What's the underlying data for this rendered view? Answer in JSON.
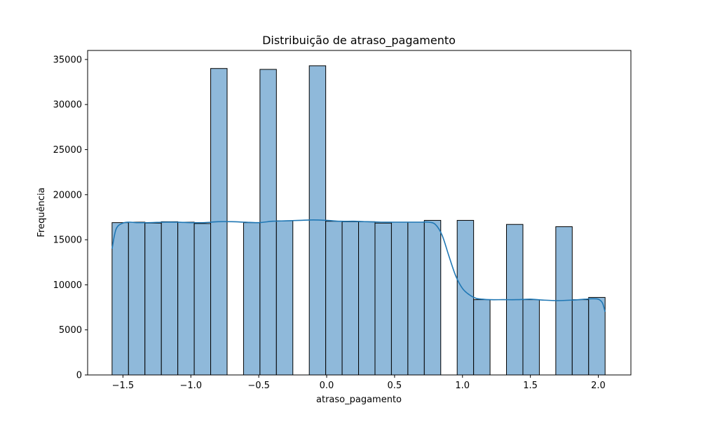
{
  "chart_data": {
    "type": "bar",
    "subtype": "histogram-with-kde",
    "title": "Distribuição de atraso_pagamento",
    "xlabel": "atraso_pagamento",
    "ylabel": "Frequência",
    "xlim": [
      -1.76,
      2.24
    ],
    "ylim": [
      0,
      36000
    ],
    "xticks": [
      -1.5,
      -1.0,
      -0.5,
      0.0,
      0.5,
      1.0,
      1.5,
      2.0
    ],
    "xtick_labels": [
      "−1.5",
      "−1.0",
      "−0.5",
      "0.0",
      "0.5",
      "1.0",
      "1.5",
      "2.0"
    ],
    "yticks": [
      0,
      5000,
      10000,
      15000,
      20000,
      25000,
      30000,
      35000
    ],
    "ytick_labels": [
      "0",
      "5000",
      "10000",
      "15000",
      "20000",
      "25000",
      "30000",
      "35000"
    ],
    "grid": false,
    "bar_color": "#8fb9da",
    "bar_edge_color": "#000000",
    "kde_color": "#1f77b4",
    "bins": [
      {
        "x0": -1.58,
        "x1": -1.459,
        "count": 16900
      },
      {
        "x0": -1.459,
        "x1": -1.338,
        "count": 16950
      },
      {
        "x0": -1.338,
        "x1": -1.217,
        "count": 16850
      },
      {
        "x0": -1.217,
        "x1": -1.096,
        "count": 17000
      },
      {
        "x0": -1.096,
        "x1": -0.975,
        "count": 16950
      },
      {
        "x0": -0.975,
        "x1": -0.854,
        "count": 16800
      },
      {
        "x0": -0.854,
        "x1": -0.733,
        "count": 34000
      },
      {
        "x0": -0.733,
        "x1": -0.612,
        "count": 0
      },
      {
        "x0": -0.612,
        "x1": -0.491,
        "count": 16900
      },
      {
        "x0": -0.491,
        "x1": -0.37,
        "count": 33900
      },
      {
        "x0": -0.37,
        "x1": -0.249,
        "count": 17100
      },
      {
        "x0": -0.249,
        "x1": -0.128,
        "count": 0
      },
      {
        "x0": -0.128,
        "x1": -0.007,
        "count": 34300
      },
      {
        "x0": -0.007,
        "x1": 0.114,
        "count": 17050
      },
      {
        "x0": 0.114,
        "x1": 0.235,
        "count": 17000
      },
      {
        "x0": 0.235,
        "x1": 0.356,
        "count": 17000
      },
      {
        "x0": 0.356,
        "x1": 0.477,
        "count": 16850
      },
      {
        "x0": 0.477,
        "x1": 0.598,
        "count": 16950
      },
      {
        "x0": 0.598,
        "x1": 0.719,
        "count": 16950
      },
      {
        "x0": 0.719,
        "x1": 0.84,
        "count": 17150
      },
      {
        "x0": 0.84,
        "x1": 0.961,
        "count": 0
      },
      {
        "x0": 0.961,
        "x1": 1.082,
        "count": 17150
      },
      {
        "x0": 1.082,
        "x1": 1.203,
        "count": 8350
      },
      {
        "x0": 1.203,
        "x1": 1.324,
        "count": 0
      },
      {
        "x0": 1.324,
        "x1": 1.445,
        "count": 16700
      },
      {
        "x0": 1.445,
        "x1": 1.566,
        "count": 8350
      },
      {
        "x0": 1.566,
        "x1": 1.687,
        "count": 0
      },
      {
        "x0": 1.687,
        "x1": 1.808,
        "count": 16450
      },
      {
        "x0": 1.808,
        "x1": 1.929,
        "count": 8350
      },
      {
        "x0": 1.929,
        "x1": 2.05,
        "count": 8600
      }
    ],
    "kde": {
      "x": [
        -1.58,
        -1.55,
        -1.5,
        -1.45,
        -1.4,
        -1.3,
        -1.2,
        -1.1,
        -1.0,
        -0.9,
        -0.8,
        -0.7,
        -0.6,
        -0.5,
        -0.4,
        -0.3,
        -0.2,
        -0.1,
        0.0,
        0.1,
        0.2,
        0.3,
        0.4,
        0.5,
        0.6,
        0.7,
        0.75,
        0.8,
        0.85,
        0.9,
        0.95,
        1.0,
        1.05,
        1.1,
        1.15,
        1.2,
        1.3,
        1.4,
        1.5,
        1.6,
        1.7,
        1.8,
        1.9,
        1.95,
        2.0,
        2.03,
        2.05
      ],
      "y": [
        14000,
        16200,
        16850,
        16950,
        16900,
        16900,
        16950,
        16950,
        16900,
        16900,
        17000,
        17000,
        16950,
        16900,
        17050,
        17100,
        17150,
        17200,
        17150,
        17050,
        17050,
        17000,
        16950,
        16950,
        16950,
        16950,
        16950,
        16700,
        15500,
        13200,
        11000,
        9600,
        8900,
        8500,
        8400,
        8350,
        8350,
        8350,
        8400,
        8300,
        8250,
        8300,
        8400,
        8450,
        8400,
        8000,
        7000
      ]
    }
  }
}
